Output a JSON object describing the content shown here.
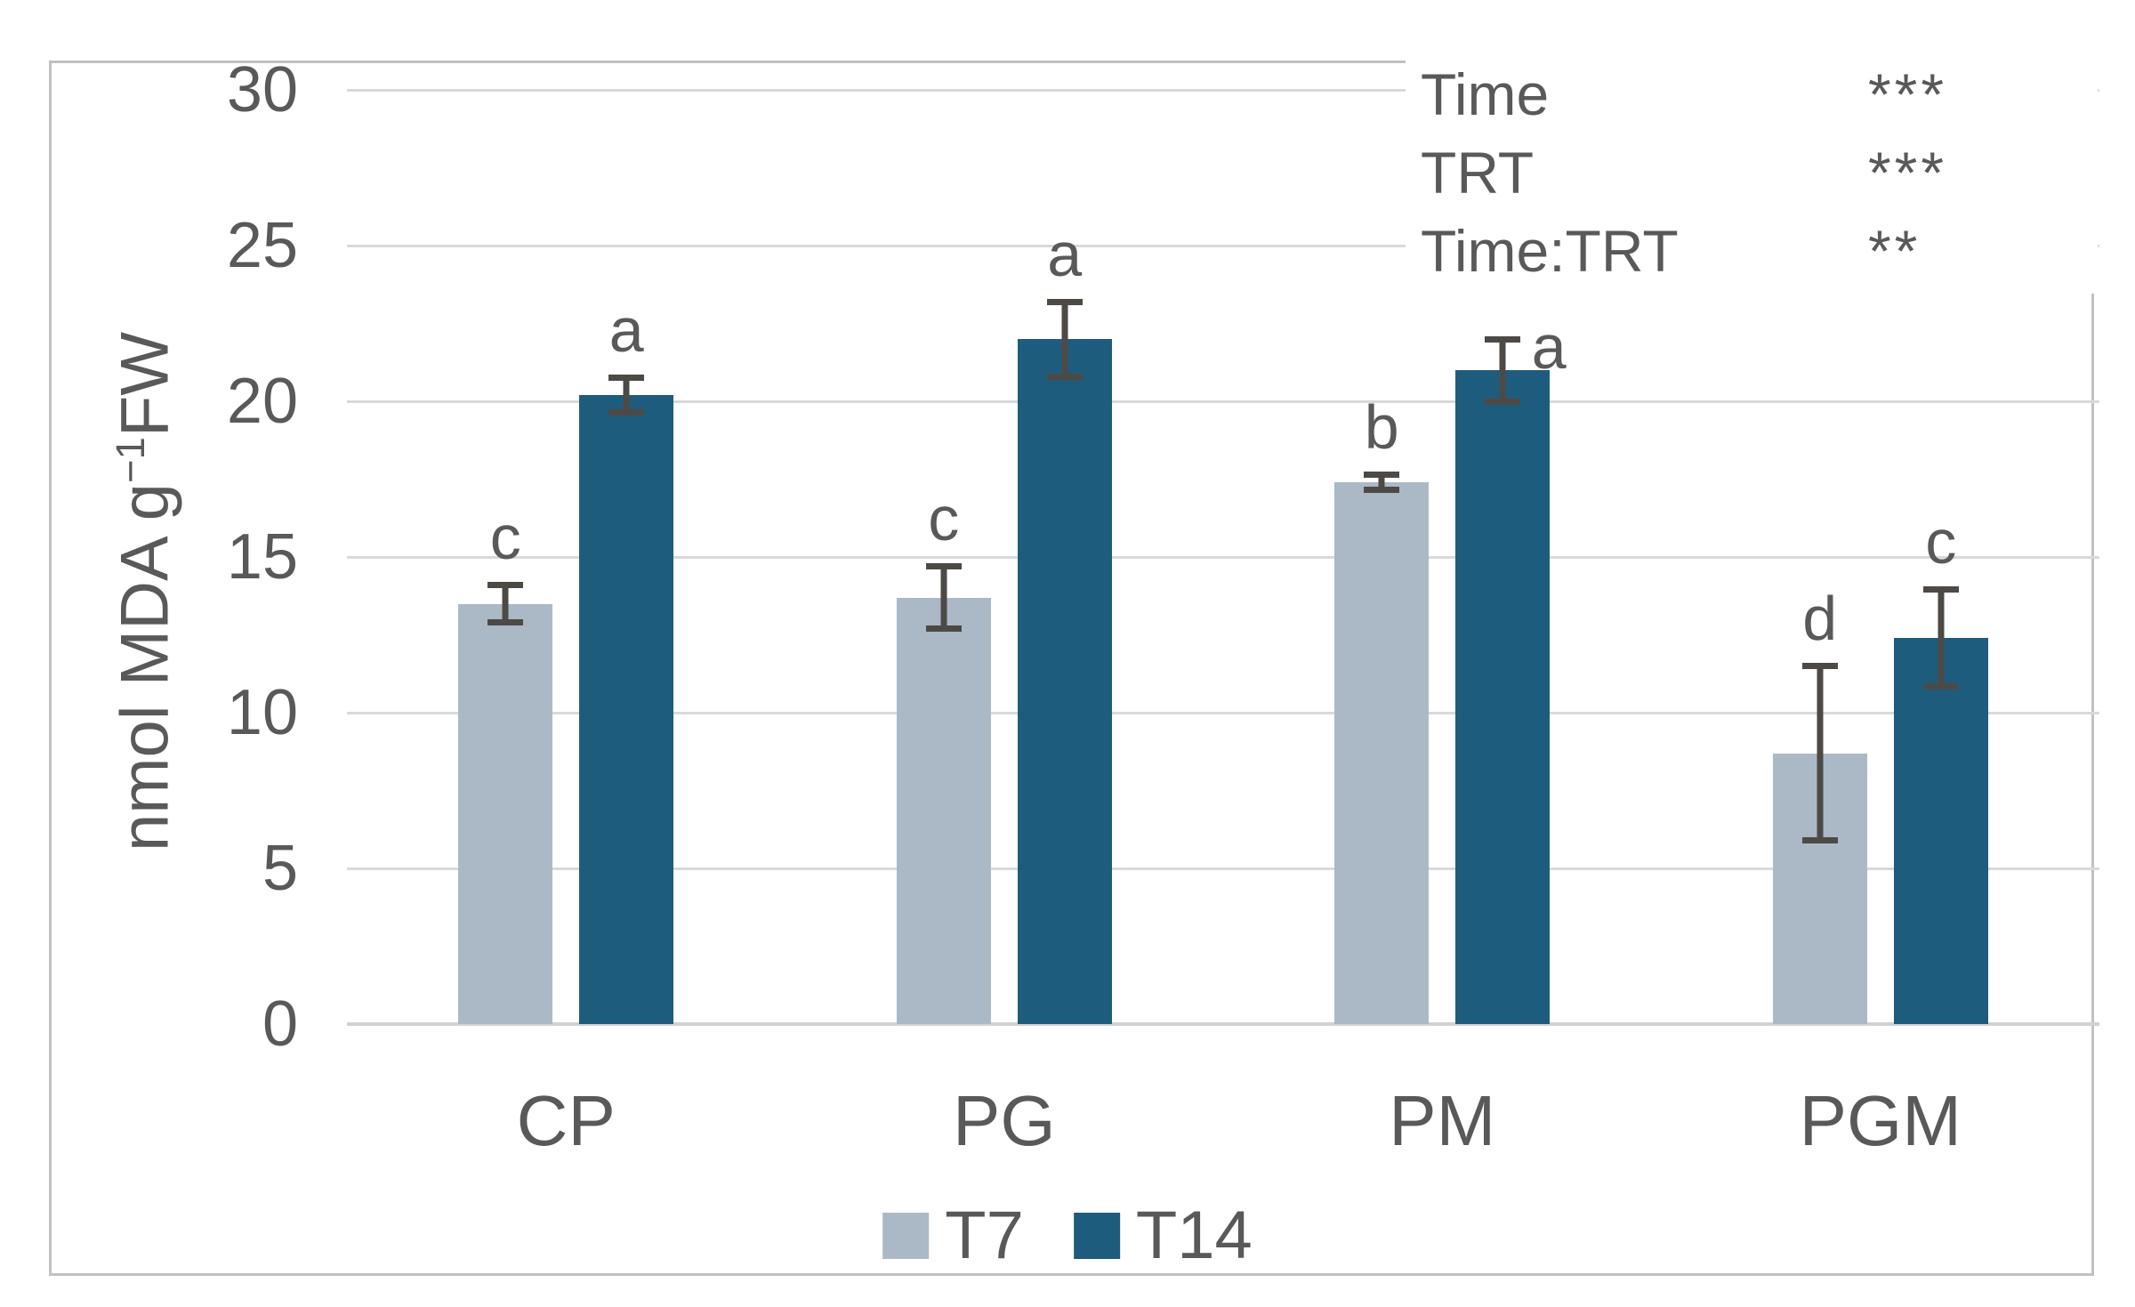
{
  "chart_data": {
    "type": "bar",
    "title": "",
    "categories": [
      "CP",
      "PG",
      "PM",
      "PGM"
    ],
    "series": [
      {
        "name": "T7",
        "color": "#abb9c7",
        "values": [
          13.5,
          13.7,
          17.4,
          8.7
        ],
        "errors": [
          0.7,
          1.1,
          0.35,
          2.9
        ],
        "letters": [
          "c",
          "c",
          "b",
          "d"
        ],
        "letter_pos": [
          "above",
          "above",
          "above",
          "above"
        ]
      },
      {
        "name": "T14",
        "color": "#1e5c7e",
        "values": [
          20.2,
          22.0,
          21.0,
          12.4
        ],
        "errors": [
          0.65,
          1.3,
          1.1,
          1.65
        ],
        "letters": [
          "a",
          "a",
          "a",
          "c"
        ],
        "letter_pos": [
          "above",
          "above",
          "right",
          "above"
        ]
      }
    ],
    "ylabel": {
      "pre": "nmol MDA g",
      "sup": "−1",
      "post": "FW"
    },
    "xlabel": "",
    "ylim": [
      0,
      30
    ],
    "yticks": [
      0,
      5,
      10,
      15,
      20,
      25,
      30
    ],
    "grid": true,
    "error_bars": true,
    "legend_position": "bottom-center",
    "annotations": [
      {
        "label": "Time",
        "stars": "***"
      },
      {
        "label": "TRT",
        "stars": "***"
      },
      {
        "label": "Time:TRT",
        "stars": "**"
      }
    ]
  },
  "colors": {
    "t7_bar": "#abb9c7",
    "t14_bar": "#1e5c7e",
    "text": "#595959",
    "gridline": "#d9d9d9",
    "axis_line": "#d2d2d2",
    "error_bar": "#4d4a46",
    "frame_border": "#bfc1c4",
    "background": "#ffffff"
  }
}
